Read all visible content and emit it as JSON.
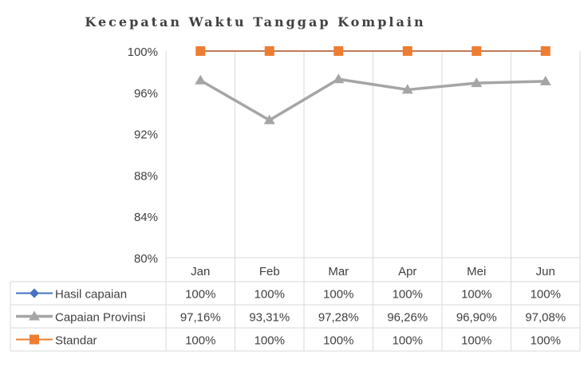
{
  "chart_data": {
    "type": "line",
    "title": "Kecepatan Waktu Tanggap Komplain",
    "categories": [
      "Jan",
      "Feb",
      "Mar",
      "Apr",
      "Mei",
      "Jun"
    ],
    "ylim": [
      80,
      100
    ],
    "yticks": [
      "80%",
      "84%",
      "88%",
      "92%",
      "96%",
      "100%"
    ],
    "ytick_values": [
      80,
      84,
      88,
      92,
      96,
      100
    ],
    "grid": "vertical",
    "legend": "data-table",
    "series": [
      {
        "name": "Hasil capaian",
        "values": [
          100,
          100,
          100,
          100,
          100,
          100
        ],
        "labels": [
          "100%",
          "100%",
          "100%",
          "100%",
          "100%",
          "100%"
        ],
        "color": "#4472c4",
        "marker": "diamond"
      },
      {
        "name": "Capaian Provinsi",
        "values": [
          97.16,
          93.31,
          97.28,
          96.26,
          96.9,
          97.08
        ],
        "labels": [
          "97,16%",
          "93,31%",
          "97,28%",
          "96,26%",
          "96,90%",
          "97,08%"
        ],
        "color": "#a5a5a5",
        "marker": "triangle"
      },
      {
        "name": "Standar",
        "values": [
          100,
          100,
          100,
          100,
          100,
          100
        ],
        "labels": [
          "100%",
          "100%",
          "100%",
          "100%",
          "100%",
          "100%"
        ],
        "color": "#ed7d31",
        "marker": "square"
      }
    ]
  }
}
